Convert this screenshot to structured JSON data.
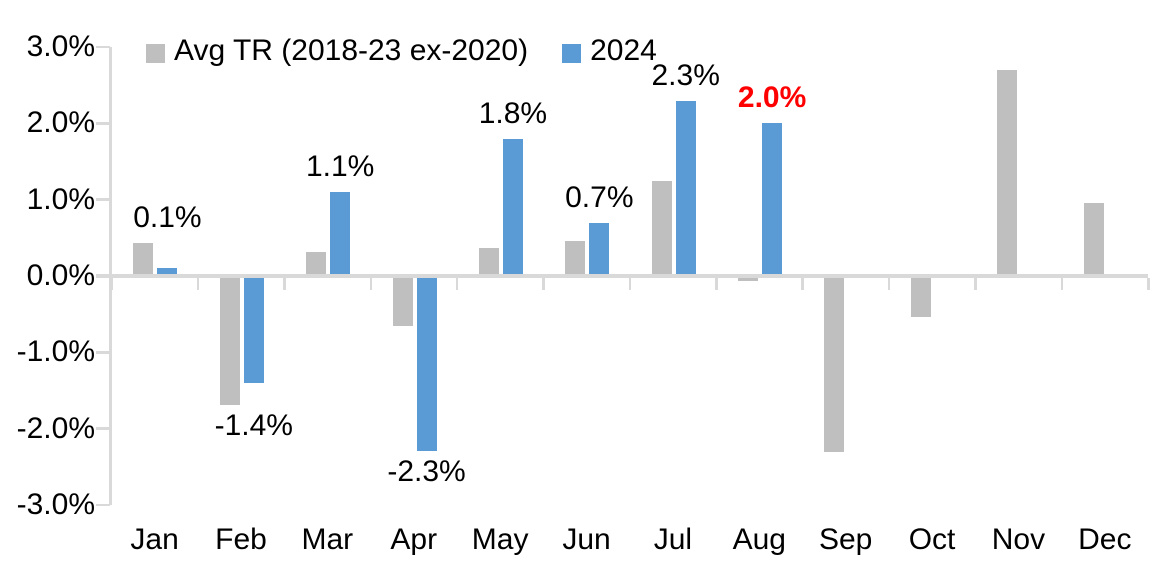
{
  "chart_data": {
    "type": "bar",
    "title": "",
    "xlabel": "",
    "ylabel": "",
    "categories": [
      "Jan",
      "Feb",
      "Mar",
      "Apr",
      "May",
      "Jun",
      "Jul",
      "Aug",
      "Sep",
      "Oct",
      "Nov",
      "Dec"
    ],
    "series": [
      {
        "name": "Avg TR (2018-23 ex-2020)",
        "color": "#BFBFBF",
        "values": [
          0.43,
          -1.69,
          0.31,
          -0.66,
          0.37,
          0.46,
          1.25,
          -0.06,
          -2.31,
          -0.54,
          2.7,
          0.96
        ]
      },
      {
        "name": "2024",
        "color": "#5B9BD5",
        "values": [
          0.1,
          -1.4,
          1.1,
          -2.3,
          1.8,
          0.7,
          2.3,
          2.0,
          null,
          null,
          null,
          null
        ]
      }
    ],
    "data_labels": [
      {
        "month": "Jan",
        "text": "0.1%",
        "value": 0.1,
        "color": "#000000",
        "bold": false
      },
      {
        "month": "Feb",
        "text": "-1.4%",
        "value": -1.4,
        "color": "#000000",
        "bold": false
      },
      {
        "month": "Mar",
        "text": "1.1%",
        "value": 1.1,
        "color": "#000000",
        "bold": false
      },
      {
        "month": "Apr",
        "text": "-2.3%",
        "value": -2.3,
        "color": "#000000",
        "bold": false
      },
      {
        "month": "May",
        "text": "1.8%",
        "value": 1.8,
        "color": "#000000",
        "bold": false
      },
      {
        "month": "Jun",
        "text": "0.7%",
        "value": 0.7,
        "color": "#000000",
        "bold": false
      },
      {
        "month": "Jul",
        "text": "2.3%",
        "value": 2.3,
        "color": "#000000",
        "bold": false
      },
      {
        "month": "Aug",
        "text": "2.0%",
        "value": 2.0,
        "color": "#FF0000",
        "bold": true
      }
    ],
    "y_ticks": [
      "3.0%",
      "2.0%",
      "1.0%",
      "0.0%",
      "-1.0%",
      "-2.0%",
      "-3.0%"
    ],
    "ylim": [
      -3.0,
      3.0
    ],
    "grid": false,
    "legend_position": "top",
    "axis_color": "#D9D9D9",
    "text_color": "#000000",
    "highlight_color": "#FF0000"
  }
}
